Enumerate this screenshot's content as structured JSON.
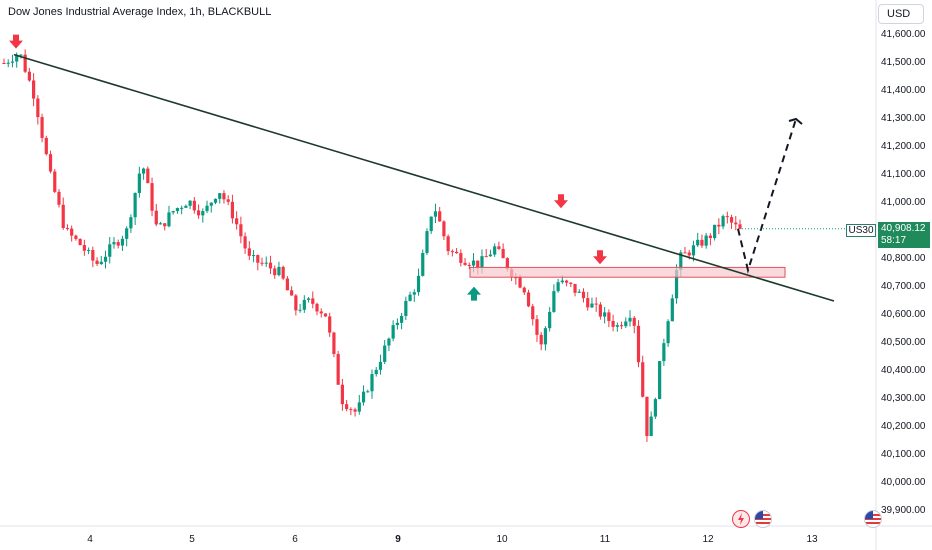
{
  "header": {
    "title": "Dow Jones Industrial Average Index, 1h, BLACKBULL",
    "currency": "USD"
  },
  "price_axis": {
    "ticks": [
      "41,600.00",
      "41,500.00",
      "41,400.00",
      "41,300.00",
      "41,200.00",
      "41,100.00",
      "41,000.00",
      "40,900.00",
      "40,800.00",
      "40,700.00",
      "40,600.00",
      "40,500.00",
      "40,400.00",
      "40,300.00",
      "40,200.00",
      "40,100.00",
      "40,000.00",
      "39,900.00"
    ],
    "symbol": "US30",
    "last_price": "40,908.12",
    "countdown": "58:17"
  },
  "time_axis": {
    "ticks": [
      "4",
      "5",
      "6",
      "9",
      "10",
      "11",
      "12",
      "13"
    ],
    "bold_tick": "9"
  },
  "icons": [
    "flash-icon",
    "us-flag-icon"
  ],
  "colors": {
    "up": "#089981",
    "down": "#f23645",
    "trendline": "#1e3a2a",
    "zone": "#f7c9cd",
    "zone_border": "#e0505d",
    "badge": "#1f8a5a"
  },
  "chart_data": {
    "type": "candlestick",
    "title": "Dow Jones Industrial Average Index, 1h, BLACKBULL",
    "ylim": [
      39850,
      41650
    ],
    "x_categories": [
      "4",
      "5",
      "6",
      "9",
      "10",
      "11",
      "12",
      "13"
    ],
    "price_path": [
      41500,
      41540,
      41380,
      41100,
      40900,
      40850,
      40780,
      40840,
      40900,
      41150,
      40900,
      40970,
      41010,
      40960,
      41050,
      40950,
      40800,
      40780,
      40750,
      40620,
      40650,
      40600,
      40300,
      40250,
      40380,
      40500,
      40620,
      40720,
      41000,
      40830,
      40800,
      40780,
      40840,
      40760,
      40690,
      40480,
      40720,
      40700,
      40650,
      40600,
      40560,
      40620,
      40150,
      40500,
      40800,
      40840,
      40880,
      40950,
      40900
    ],
    "trendline": {
      "from": 41530,
      "to": 40650
    },
    "resistance_zone": [
      40735,
      40770
    ],
    "projection": [
      40908,
      40760,
      41300
    ],
    "markers": [
      {
        "type": "sell",
        "price": 41530
      },
      {
        "type": "buy",
        "price": 40730
      },
      {
        "type": "sell",
        "price": 40960
      },
      {
        "type": "sell",
        "price": 40760
      }
    ]
  }
}
